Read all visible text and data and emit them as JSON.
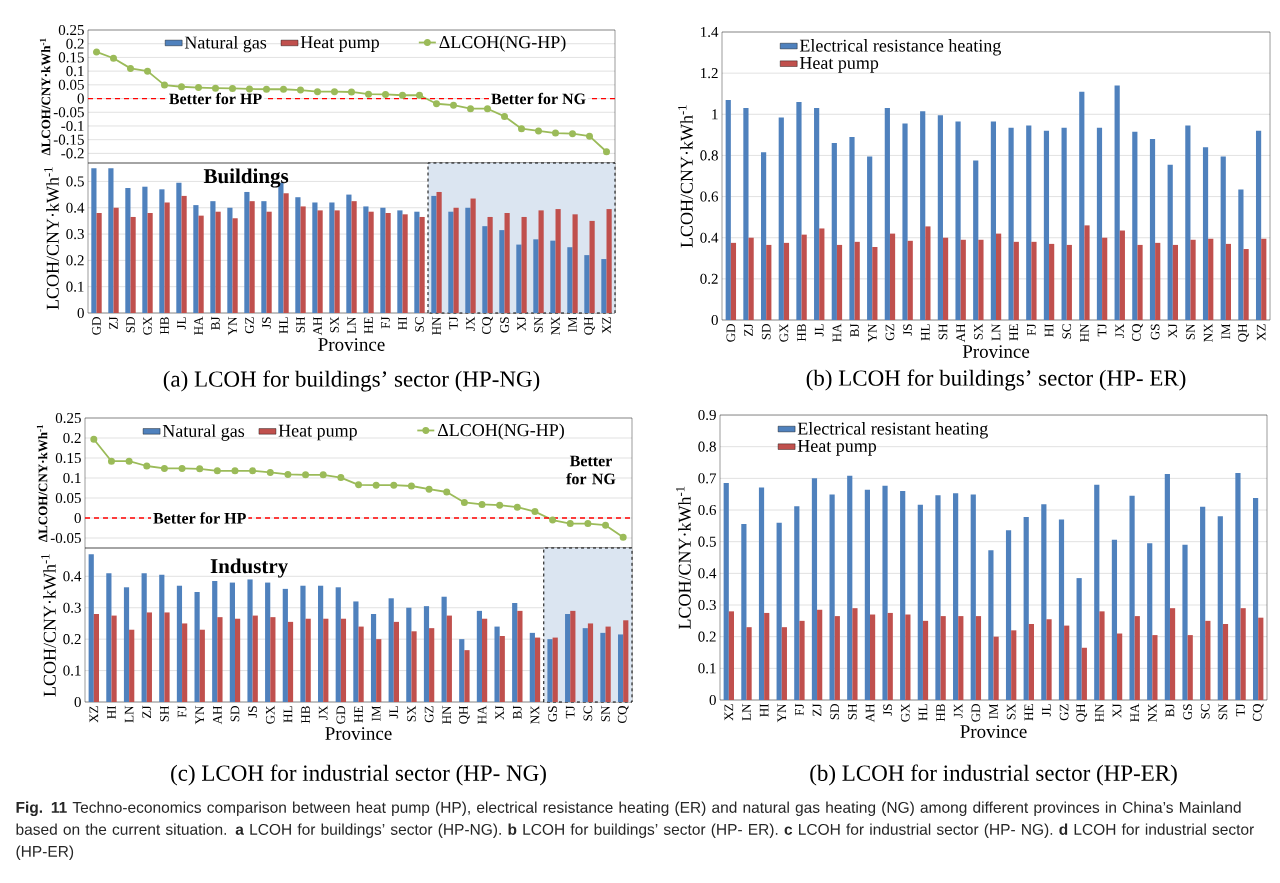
{
  "chart_data": [
    {
      "type": "line",
      "categories": [
        "GD",
        "ZJ",
        "SD",
        "GX",
        "HB",
        "JL",
        "HA",
        "BJ",
        "YN",
        "GZ",
        "JS",
        "HL",
        "SH",
        "AH",
        "SX",
        "LN",
        "HE",
        "FJ",
        "HI",
        "SC",
        "HN",
        "TJ",
        "JX",
        "CQ",
        "GS",
        "XJ",
        "SN",
        "NX",
        "IM",
        "QH",
        "XZ"
      ],
      "series": [
        {
          "name": "ΔLCOH(NG-HP)",
          "color": "#9bbb59",
          "values": [
            0.17,
            0.147,
            0.11,
            0.1,
            0.049,
            0.043,
            0.04,
            0.038,
            0.037,
            0.035,
            0.034,
            0.034,
            0.031,
            0.025,
            0.025,
            0.024,
            0.016,
            0.015,
            0.012,
            0.012,
            -0.019,
            -0.024,
            -0.037,
            -0.037,
            -0.065,
            -0.11,
            -0.118,
            -0.126,
            -0.128,
            -0.137,
            -0.194
          ]
        }
      ],
      "ylabel": "ΔLCOH/CNY·kWh$^{-1}$",
      "ylim": [
        -0.235,
        0.25
      ],
      "yticks": [
        -0.2,
        -0.15,
        -0.1,
        -0.05,
        0,
        0.05,
        0.1,
        0.15,
        0.2,
        0.25
      ],
      "marker": "circle",
      "grid": "y",
      "legend": "top",
      "tick_labels": "y",
      "ref_lines": [
        {
          "axis": "y",
          "value": 0,
          "color": "#ff0000",
          "line_style": "dashed"
        }
      ],
      "annotations": [
        {
          "text": "Better for HP",
          "x": "BJ",
          "y": 0
        },
        {
          "text": "Better for NG",
          "x": "SN",
          "y": 0
        }
      ]
    },
    {
      "type": "bar",
      "categories": [
        "GD",
        "ZJ",
        "SD",
        "GX",
        "HB",
        "JL",
        "HA",
        "BJ",
        "YN",
        "GZ",
        "JS",
        "HL",
        "SH",
        "AH",
        "SX",
        "LN",
        "HE",
        "FJ",
        "HI",
        "SC",
        "HN",
        "TJ",
        "JX",
        "CQ",
        "GS",
        "XJ",
        "SN",
        "NX",
        "IM",
        "QH",
        "XZ"
      ],
      "series": [
        {
          "name": "Natural gas",
          "color": "#4f81bd",
          "values": [
            0.55,
            0.55,
            0.475,
            0.48,
            0.47,
            0.495,
            0.41,
            0.425,
            0.4,
            0.46,
            0.425,
            0.495,
            0.44,
            0.42,
            0.42,
            0.45,
            0.405,
            0.4,
            0.39,
            0.385,
            0.445,
            0.385,
            0.4,
            0.33,
            0.315,
            0.26,
            0.28,
            0.275,
            0.25,
            0.22,
            0.205
          ]
        },
        {
          "name": "Heat pump",
          "color": "#c0504d",
          "values": [
            0.38,
            0.4,
            0.365,
            0.38,
            0.42,
            0.445,
            0.37,
            0.385,
            0.36,
            0.425,
            0.385,
            0.455,
            0.405,
            0.39,
            0.39,
            0.425,
            0.385,
            0.38,
            0.375,
            0.365,
            0.46,
            0.4,
            0.435,
            0.365,
            0.38,
            0.365,
            0.39,
            0.395,
            0.375,
            0.35,
            0.395
          ]
        }
      ],
      "title": "(a) LCOH for buildings’ sector (HP-NG)",
      "xlabel": "Province",
      "ylabel": "LCOH/CNY·kWh$^{-1}$",
      "ylim": [
        0,
        0.57
      ],
      "yticks": [
        0,
        0.1,
        0.2,
        0.3,
        0.4,
        0.5
      ],
      "grid": "y",
      "legend": "top",
      "bands": [
        {
          "axis": "x",
          "from": "HN",
          "to": "XZ",
          "color": "#dbe5f1"
        }
      ],
      "annotations": [
        "Buildings"
      ]
    },
    {
      "type": "bar",
      "categories": [
        "GD",
        "ZJ",
        "SD",
        "GX",
        "HB",
        "JL",
        "HA",
        "BJ",
        "YN",
        "GZ",
        "JS",
        "HL",
        "SH",
        "AH",
        "SX",
        "LN",
        "HE",
        "FJ",
        "HI",
        "SC",
        "HN",
        "TJ",
        "JX",
        "CQ",
        "GS",
        "XJ",
        "SN",
        "NX",
        "IM",
        "QH",
        "XZ"
      ],
      "series": [
        {
          "name": "Electrical resistance heating",
          "color": "#4f81bd",
          "values": [
            1.07,
            1.03,
            0.815,
            0.985,
            1.06,
            1.03,
            0.86,
            0.89,
            0.795,
            1.03,
            0.955,
            1.015,
            0.995,
            0.965,
            0.775,
            0.965,
            0.935,
            0.945,
            0.92,
            0.935,
            1.11,
            0.935,
            1.14,
            0.915,
            0.88,
            0.755,
            0.945,
            0.84,
            0.795,
            0.635,
            0.92
          ]
        },
        {
          "name": "Heat pump",
          "color": "#c0504d",
          "values": [
            0.375,
            0.4,
            0.365,
            0.375,
            0.415,
            0.445,
            0.365,
            0.38,
            0.355,
            0.42,
            0.385,
            0.455,
            0.4,
            0.39,
            0.39,
            0.42,
            0.38,
            0.38,
            0.37,
            0.365,
            0.46,
            0.4,
            0.435,
            0.365,
            0.375,
            0.365,
            0.39,
            0.395,
            0.37,
            0.345,
            0.395
          ]
        }
      ],
      "title": "(b) LCOH for buildings’ sector (HP- ER)",
      "xlabel": "Province",
      "ylabel": "LCOH/CNY·kWh$^{-1}$",
      "ylim": [
        0,
        1.4
      ],
      "yticks": [
        0,
        0.2,
        0.4,
        0.6,
        0.8,
        1,
        1.2,
        1.4
      ],
      "grid": "y",
      "legend": "top left"
    },
    {
      "type": "line",
      "categories": [
        "XZ",
        "HI",
        "LN",
        "ZJ",
        "SH",
        "FJ",
        "YN",
        "AH",
        "SD",
        "JS",
        "GX",
        "HL",
        "HB",
        "JX",
        "GD",
        "HE",
        "IM",
        "JL",
        "SX",
        "GZ",
        "HN",
        "QH",
        "HA",
        "XJ",
        "BJ",
        "NX",
        "GS",
        "TJ",
        "SC",
        "SN",
        "CQ"
      ],
      "series": [
        {
          "name": "ΔLCOH(NG-HP)",
          "color": "#9bbb59",
          "values": [
            0.197,
            0.142,
            0.142,
            0.13,
            0.124,
            0.124,
            0.123,
            0.118,
            0.118,
            0.118,
            0.114,
            0.109,
            0.108,
            0.108,
            0.101,
            0.083,
            0.082,
            0.082,
            0.08,
            0.072,
            0.065,
            0.039,
            0.034,
            0.032,
            0.027,
            0.016,
            -0.005,
            -0.014,
            -0.014,
            -0.018,
            -0.048
          ]
        }
      ],
      "ylabel": "ΔLCOH/CNY·kWh$^{-1}$",
      "ylim": [
        -0.075,
        0.25
      ],
      "yticks": [
        -0.05,
        0,
        0.05,
        0.1,
        0.15,
        0.2,
        0.25
      ],
      "marker": "circle",
      "grid": "y",
      "legend": "top",
      "tick_labels": "y",
      "ref_lines": [
        {
          "axis": "y",
          "value": 0,
          "color": "#ff0000",
          "line_style": "dashed"
        }
      ],
      "annotations": [
        {
          "text": "Better for HP",
          "x": "YN",
          "y": 0
        },
        "Better for NG"
      ]
    },
    {
      "type": "bar",
      "categories": [
        "XZ",
        "HI",
        "LN",
        "ZJ",
        "SH",
        "FJ",
        "YN",
        "AH",
        "SD",
        "JS",
        "GX",
        "HL",
        "HB",
        "JX",
        "GD",
        "HE",
        "IM",
        "JL",
        "SX",
        "GZ",
        "HN",
        "QH",
        "HA",
        "XJ",
        "BJ",
        "NX",
        "GS",
        "TJ",
        "SC",
        "SN",
        "CQ"
      ],
      "series": [
        {
          "name": "Natural gas",
          "color": "#4f81bd",
          "values": [
            0.47,
            0.41,
            0.365,
            0.41,
            0.405,
            0.37,
            0.35,
            0.385,
            0.38,
            0.39,
            0.38,
            0.36,
            0.37,
            0.37,
            0.365,
            0.32,
            0.28,
            0.33,
            0.3,
            0.305,
            0.335,
            0.2,
            0.29,
            0.24,
            0.315,
            0.22,
            0.2,
            0.28,
            0.235,
            0.22,
            0.215
          ]
        },
        {
          "name": "Heat pump",
          "color": "#c0504d",
          "values": [
            0.28,
            0.275,
            0.23,
            0.285,
            0.285,
            0.25,
            0.23,
            0.27,
            0.265,
            0.275,
            0.27,
            0.255,
            0.265,
            0.265,
            0.265,
            0.24,
            0.2,
            0.255,
            0.225,
            0.235,
            0.275,
            0.165,
            0.265,
            0.21,
            0.29,
            0.205,
            0.205,
            0.29,
            0.25,
            0.24,
            0.26
          ]
        }
      ],
      "title": "(c) LCOH for industrial sector (HP- NG)",
      "xlabel": "Province",
      "ylabel": "LCOH/CNY·kWh$^{-1}$",
      "ylim": [
        0,
        0.49
      ],
      "yticks": [
        0,
        0.1,
        0.2,
        0.3,
        0.4
      ],
      "grid": "y",
      "legend": "top",
      "bands": [
        {
          "axis": "x",
          "from": "GS",
          "to": "CQ",
          "color": "#dbe5f1"
        }
      ],
      "annotations": [
        "Industry"
      ]
    },
    {
      "type": "bar",
      "categories": [
        "XZ",
        "LN",
        "HI",
        "YN",
        "FJ",
        "ZJ",
        "SD",
        "SH",
        "AH",
        "JS",
        "GX",
        "HL",
        "HB",
        "JX",
        "GD",
        "IM",
        "SX",
        "HE",
        "JL",
        "GZ",
        "QH",
        "HN",
        "XJ",
        "HA",
        "NX",
        "BJ",
        "GS",
        "SC",
        "SN",
        "TJ",
        "CQ"
      ],
      "series": [
        {
          "name": "Electrical resistant heating",
          "color": "#4f81bd",
          "values": [
            0.685,
            0.556,
            0.671,
            0.56,
            0.612,
            0.7,
            0.649,
            0.708,
            0.664,
            0.677,
            0.66,
            0.617,
            0.647,
            0.653,
            0.649,
            0.473,
            0.536,
            0.578,
            0.618,
            0.57,
            0.385,
            0.68,
            0.506,
            0.645,
            0.495,
            0.714,
            0.49,
            0.61,
            0.58,
            0.717,
            0.638
          ]
        },
        {
          "name": "Heat pump",
          "color": "#c0504d",
          "values": [
            0.28,
            0.23,
            0.275,
            0.23,
            0.25,
            0.285,
            0.265,
            0.29,
            0.27,
            0.275,
            0.27,
            0.25,
            0.265,
            0.265,
            0.265,
            0.2,
            0.22,
            0.24,
            0.255,
            0.235,
            0.165,
            0.28,
            0.21,
            0.265,
            0.205,
            0.29,
            0.205,
            0.25,
            0.24,
            0.29,
            0.26
          ]
        }
      ],
      "title": "(b) LCOH for industrial sector (HP-ER)",
      "xlabel": "Province",
      "ylabel": "LCOH/CNY·kWh$^{-1}$",
      "ylim": [
        0,
        0.9
      ],
      "yticks": [
        0,
        0.1,
        0.2,
        0.3,
        0.4,
        0.5,
        0.6,
        0.7,
        0.8,
        0.9
      ],
      "grid": "y",
      "legend": "top left",
      "annotations": [
        "**Fig. 11** Techno-economics comparison between heat pump (HP), electrical resistance heating (ER) and natural gas heating (NG) among different provinces in China’s Mainland based on the current situation. **a** LCOH for buildings’ sector (HP-NG). **b** LCOH for buildings’ sector (HP- ER). **c** LCOH for industrial sector (HP- NG). **d** LCOH for industrial sector (HP-ER)"
      ]
    }
  ]
}
